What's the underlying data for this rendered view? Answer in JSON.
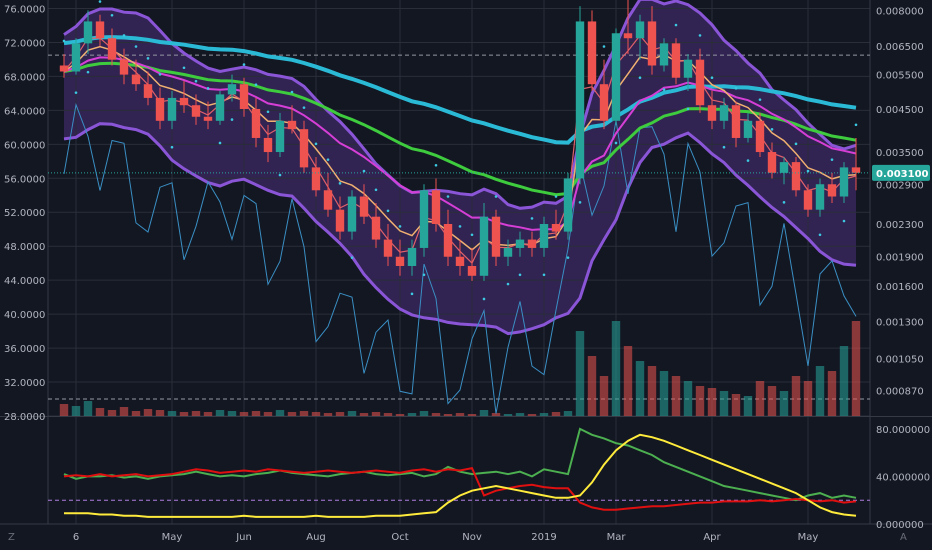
{
  "colors": {
    "background": "#131722",
    "grid": "#2a2e39",
    "cloud": "#4a2d7a",
    "band": "#8a55d6",
    "ma_cyan": "#2bbad6",
    "ma_green": "#3ecc3e",
    "ma_magenta": "#d63fd6",
    "ma_orange": "#f0b070",
    "ma_red": "#e0606a",
    "thin_blue": "#3a8fc4",
    "candle_up": "#26a69a",
    "candle_down": "#ef5350",
    "psar": "#3bc8e0",
    "osc_green": "#4caf50",
    "osc_red": "#e01010",
    "osc_yellow": "#ffeb3b",
    "price_tag": "#26a69a"
  },
  "chart_data": [
    {
      "type": "candlestick",
      "name": "price-panel",
      "left_axis": {
        "ticks": [
          "76.0000",
          "72.0000",
          "68.0000",
          "64.0000",
          "60.0000",
          "56.0000",
          "52.0000",
          "48.0000",
          "44.0000",
          "40.0000",
          "36.0000",
          "32.0000",
          "28.0000"
        ],
        "range": [
          28,
          77
        ]
      },
      "right_axis": {
        "scale": "log",
        "ticks": [
          "0.008000",
          "0.006500",
          "0.005500",
          "0.004500",
          "0.003500",
          "0.002900",
          "0.002300",
          "0.001900",
          "0.001600",
          "0.001300",
          "0.001050",
          "0.000870"
        ],
        "last_price": "0.003100"
      },
      "x_axis": {
        "ticks": [
          "6",
          "May",
          "Jun",
          "Aug",
          "Oct",
          "Nov",
          "2019",
          "Mar",
          "Apr",
          "May"
        ]
      },
      "dashed_levels": [
        70.5,
        30.0
      ],
      "candles": [
        [
          0.0058,
          0.0062,
          0.0054,
          0.0056
        ],
        [
          0.0056,
          0.0068,
          0.0055,
          0.0066
        ],
        [
          0.0066,
          0.008,
          0.0062,
          0.0075
        ],
        [
          0.0075,
          0.0078,
          0.0065,
          0.0068
        ],
        [
          0.0068,
          0.0072,
          0.0058,
          0.006
        ],
        [
          0.006,
          0.0064,
          0.0052,
          0.0055
        ],
        [
          0.0055,
          0.006,
          0.005,
          0.0052
        ],
        [
          0.0052,
          0.0056,
          0.0046,
          0.0048
        ],
        [
          0.0048,
          0.0051,
          0.004,
          0.0042
        ],
        [
          0.0042,
          0.005,
          0.004,
          0.0048
        ],
        [
          0.0048,
          0.0053,
          0.0044,
          0.0046
        ],
        [
          0.0046,
          0.0049,
          0.0041,
          0.0043
        ],
        [
          0.0043,
          0.0047,
          0.004,
          0.0042
        ],
        [
          0.0042,
          0.005,
          0.0041,
          0.0049
        ],
        [
          0.0049,
          0.0055,
          0.0047,
          0.0052
        ],
        [
          0.0052,
          0.0054,
          0.0043,
          0.0045
        ],
        [
          0.0045,
          0.0048,
          0.0036,
          0.0038
        ],
        [
          0.0038,
          0.0041,
          0.0033,
          0.0035
        ],
        [
          0.0035,
          0.0044,
          0.0034,
          0.0042
        ],
        [
          0.0042,
          0.0046,
          0.0039,
          0.004
        ],
        [
          0.004,
          0.0042,
          0.0031,
          0.0032
        ],
        [
          0.0032,
          0.0034,
          0.0027,
          0.0028
        ],
        [
          0.0028,
          0.0031,
          0.0024,
          0.0025
        ],
        [
          0.0025,
          0.0027,
          0.0021,
          0.0022
        ],
        [
          0.0022,
          0.0028,
          0.0021,
          0.0027
        ],
        [
          0.0027,
          0.0029,
          0.0023,
          0.0024
        ],
        [
          0.0024,
          0.0026,
          0.002,
          0.0021
        ],
        [
          0.0021,
          0.0023,
          0.0018,
          0.0019
        ],
        [
          0.0019,
          0.0021,
          0.0017,
          0.0018
        ],
        [
          0.0018,
          0.0021,
          0.0017,
          0.002
        ],
        [
          0.002,
          0.0029,
          0.0019,
          0.0028
        ],
        [
          0.0028,
          0.003,
          0.0022,
          0.0023
        ],
        [
          0.0023,
          0.0025,
          0.0018,
          0.0019
        ],
        [
          0.0019,
          0.0021,
          0.0017,
          0.0018
        ],
        [
          0.0018,
          0.002,
          0.00165,
          0.0017
        ],
        [
          0.0017,
          0.0026,
          0.00165,
          0.0024
        ],
        [
          0.0024,
          0.0025,
          0.0018,
          0.0019
        ],
        [
          0.0019,
          0.0021,
          0.0018,
          0.002
        ],
        [
          0.002,
          0.0022,
          0.0019,
          0.0021
        ],
        [
          0.0021,
          0.0022,
          0.0019,
          0.002
        ],
        [
          0.002,
          0.0024,
          0.0019,
          0.0023
        ],
        [
          0.0023,
          0.0025,
          0.0021,
          0.0022
        ],
        [
          0.0022,
          0.0031,
          0.0021,
          0.003
        ],
        [
          0.003,
          0.0082,
          0.0029,
          0.0075
        ],
        [
          0.0075,
          0.008,
          0.005,
          0.0052
        ],
        [
          0.0052,
          0.006,
          0.004,
          0.0042
        ],
        [
          0.0042,
          0.0072,
          0.0041,
          0.007
        ],
        [
          0.007,
          0.0085,
          0.0062,
          0.0068
        ],
        [
          0.0068,
          0.0078,
          0.006,
          0.0075
        ],
        [
          0.0075,
          0.0082,
          0.0055,
          0.0058
        ],
        [
          0.0058,
          0.0068,
          0.0056,
          0.0066
        ],
        [
          0.0066,
          0.0068,
          0.0052,
          0.0054
        ],
        [
          0.0054,
          0.0062,
          0.005,
          0.006
        ],
        [
          0.006,
          0.0064,
          0.0044,
          0.0046
        ],
        [
          0.0046,
          0.005,
          0.004,
          0.0042
        ],
        [
          0.0042,
          0.0048,
          0.004,
          0.0046
        ],
        [
          0.0046,
          0.0047,
          0.0036,
          0.0038
        ],
        [
          0.0038,
          0.0044,
          0.0037,
          0.0042
        ],
        [
          0.0042,
          0.0044,
          0.0034,
          0.0035
        ],
        [
          0.0035,
          0.0037,
          0.003,
          0.0031
        ],
        [
          0.0031,
          0.0034,
          0.0029,
          0.0033
        ],
        [
          0.0033,
          0.0034,
          0.0027,
          0.0028
        ],
        [
          0.0028,
          0.0029,
          0.0024,
          0.0025
        ],
        [
          0.0025,
          0.003,
          0.0024,
          0.0029
        ],
        [
          0.0029,
          0.0031,
          0.0026,
          0.0027
        ],
        [
          0.0027,
          0.0033,
          0.0026,
          0.0032
        ],
        [
          0.0032,
          0.0038,
          0.0028,
          0.0031
        ]
      ],
      "volume": [
        0.12,
        0.1,
        0.15,
        0.08,
        0.06,
        0.09,
        0.05,
        0.07,
        0.06,
        0.05,
        0.04,
        0.05,
        0.04,
        0.06,
        0.05,
        0.04,
        0.05,
        0.04,
        0.06,
        0.04,
        0.05,
        0.04,
        0.03,
        0.04,
        0.05,
        0.03,
        0.04,
        0.03,
        0.02,
        0.03,
        0.05,
        0.03,
        0.02,
        0.03,
        0.02,
        0.06,
        0.03,
        0.02,
        0.03,
        0.02,
        0.03,
        0.04,
        0.05,
        0.85,
        0.6,
        0.4,
        0.95,
        0.7,
        0.55,
        0.5,
        0.45,
        0.4,
        0.35,
        0.3,
        0.28,
        0.25,
        0.22,
        0.2,
        0.35,
        0.3,
        0.25,
        0.4,
        0.35,
        0.5,
        0.45,
        0.7,
        0.95
      ]
    },
    {
      "type": "line",
      "name": "oscillator-panel",
      "right_axis": {
        "ticks": [
          "80.000000",
          "40.000000",
          "0.000000"
        ],
        "range": [
          0,
          90
        ]
      },
      "dashed_level": 20,
      "series": [
        {
          "color_key": "osc_green",
          "values": [
            42,
            38,
            40,
            40,
            41,
            39,
            40,
            38,
            40,
            41,
            42,
            44,
            42,
            40,
            41,
            40,
            42,
            43,
            45,
            43,
            42,
            41,
            40,
            42,
            43,
            44,
            42,
            41,
            42,
            43,
            40,
            42,
            48,
            44,
            42,
            43,
            44,
            42,
            44,
            40,
            46,
            44,
            42,
            80,
            75,
            72,
            68,
            66,
            62,
            58,
            52,
            48,
            44,
            40,
            36,
            32,
            30,
            28,
            26,
            24,
            22,
            20,
            24,
            26,
            22,
            24,
            22
          ]
        },
        {
          "color_key": "osc_red",
          "values": [
            40,
            41,
            40,
            42,
            40,
            41,
            42,
            40,
            41,
            42,
            44,
            46,
            45,
            43,
            44,
            45,
            44,
            46,
            45,
            44,
            43,
            44,
            45,
            44,
            43,
            44,
            45,
            44,
            43,
            45,
            46,
            44,
            46,
            45,
            47,
            24,
            28,
            30,
            32,
            33,
            31,
            30,
            30,
            18,
            14,
            12,
            12,
            13,
            14,
            15,
            15,
            16,
            17,
            18,
            18,
            19,
            19,
            19,
            20,
            19,
            20,
            21,
            20,
            19,
            20,
            18,
            19
          ]
        },
        {
          "color_key": "osc_yellow",
          "values": [
            9,
            9,
            9,
            8,
            8,
            7,
            7,
            6,
            6,
            6,
            6,
            6,
            6,
            6,
            6,
            7,
            6,
            6,
            6,
            6,
            6,
            7,
            6,
            6,
            6,
            6,
            7,
            7,
            7,
            8,
            9,
            10,
            18,
            24,
            28,
            30,
            32,
            30,
            28,
            26,
            24,
            22,
            22,
            24,
            35,
            50,
            62,
            70,
            75,
            73,
            70,
            66,
            62,
            58,
            54,
            50,
            46,
            42,
            38,
            34,
            30,
            26,
            20,
            14,
            10,
            8,
            7
          ]
        }
      ]
    }
  ],
  "bottom_bar": {
    "left_button": "Z",
    "right_button": "A"
  }
}
